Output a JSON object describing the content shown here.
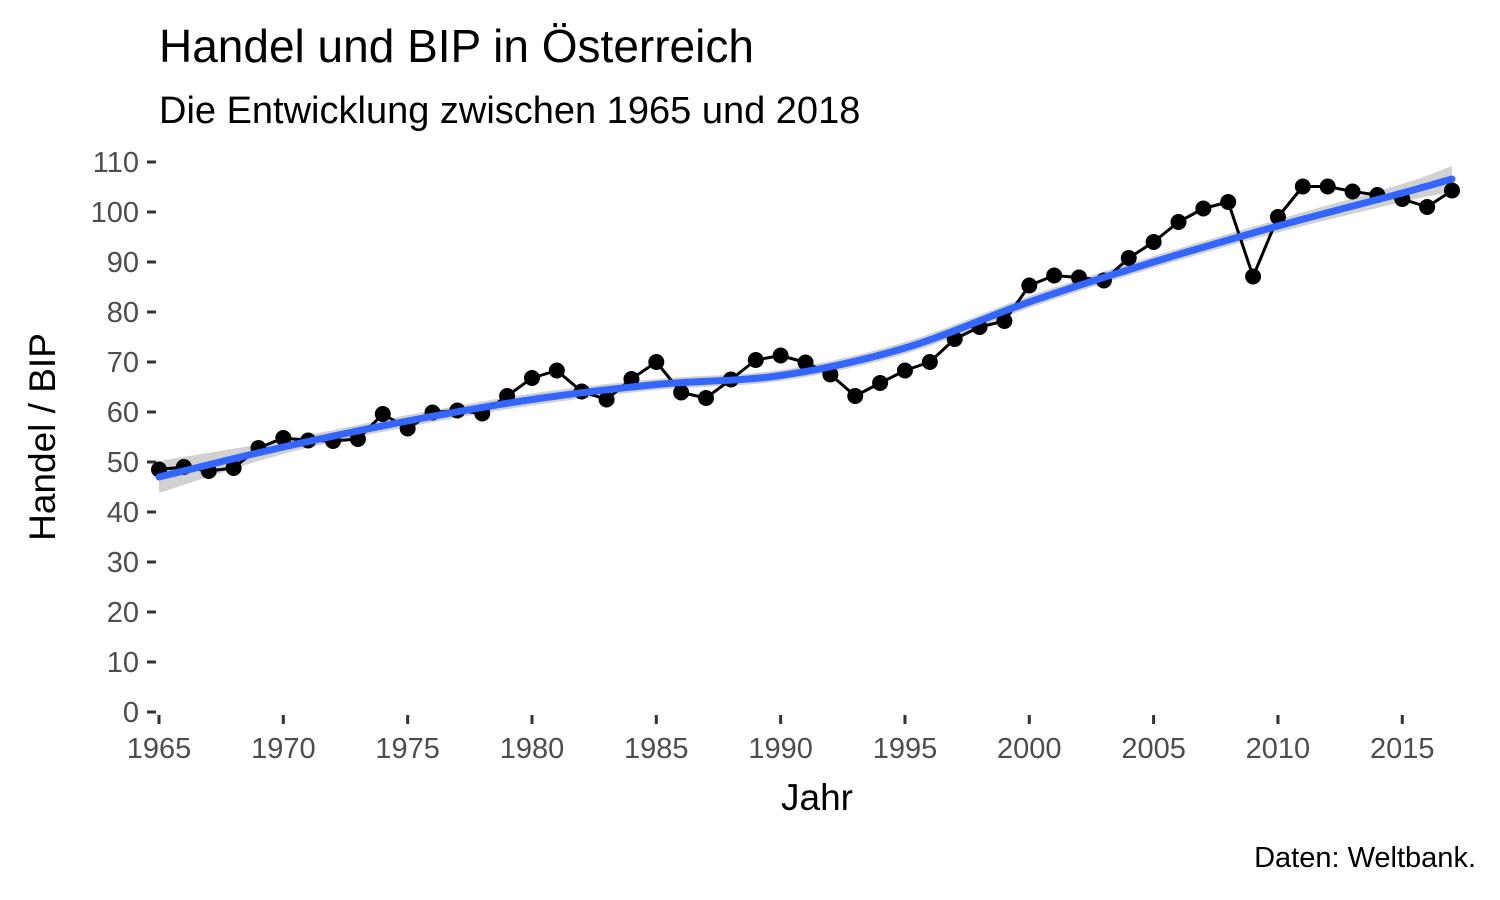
{
  "chart_data": {
    "type": "line",
    "title": "Handel und BIP in Österreich",
    "subtitle": "Die Entwicklung zwischen 1965 und 2018",
    "xlabel": "Jahr",
    "ylabel": "Handel / BIP",
    "caption": "Daten: Weltbank.",
    "xlim": [
      1965,
      2017
    ],
    "ylim": [
      0,
      110
    ],
    "x_ticks": [
      1965,
      1970,
      1975,
      1980,
      1985,
      1990,
      1995,
      2000,
      2005,
      2010,
      2015
    ],
    "y_ticks": [
      0,
      10,
      20,
      30,
      40,
      50,
      60,
      70,
      80,
      90,
      100,
      110
    ],
    "grid": false,
    "series": [
      {
        "kind": "line+points",
        "color": "#000000",
        "x": [
          1965,
          1966,
          1967,
          1968,
          1969,
          1970,
          1971,
          1972,
          1973,
          1974,
          1975,
          1976,
          1977,
          1978,
          1979,
          1980,
          1981,
          1982,
          1983,
          1984,
          1985,
          1986,
          1987,
          1988,
          1989,
          1990,
          1991,
          1992,
          1993,
          1994,
          1995,
          1996,
          1997,
          1998,
          1999,
          2000,
          2001,
          2002,
          2003,
          2004,
          2005,
          2006,
          2007,
          2008,
          2009,
          2010,
          2011,
          2012,
          2013,
          2014,
          2015,
          2016,
          2017
        ],
        "y": [
          48.5,
          49.0,
          48.2,
          48.8,
          52.8,
          54.8,
          54.3,
          54.2,
          54.6,
          59.6,
          56.7,
          59.9,
          60.3,
          59.7,
          63.2,
          66.8,
          68.3,
          64.1,
          62.5,
          66.6,
          70.0,
          63.9,
          62.8,
          66.5,
          70.4,
          71.3,
          69.9,
          67.5,
          63.2,
          65.8,
          68.3,
          70.0,
          74.6,
          77.0,
          78.2,
          85.3,
          87.3,
          86.9,
          86.3,
          90.8,
          94.0,
          98.0,
          100.7,
          102.0,
          87.1,
          99.0,
          105.1,
          105.1,
          104.1,
          103.4,
          102.6,
          101.0,
          104.3
        ]
      },
      {
        "kind": "smooth",
        "color": "#3366ff",
        "band_color": "#cccccc",
        "x": [
          1965,
          1970,
          1975,
          1980,
          1985,
          1990,
          1995,
          2000,
          2005,
          2010,
          2015,
          2017
        ],
        "y": [
          47.0,
          53.0,
          58.2,
          62.5,
          65.5,
          67.3,
          72.8,
          82.0,
          90.0,
          97.2,
          103.8,
          106.6
        ],
        "lower": [
          43.8,
          51.6,
          57.0,
          61.3,
          64.4,
          66.2,
          71.6,
          80.8,
          88.8,
          95.9,
          102.0,
          104.0
        ],
        "upper": [
          50.2,
          54.4,
          59.4,
          63.7,
          66.6,
          68.4,
          74.0,
          83.2,
          91.2,
          98.5,
          105.6,
          109.2
        ]
      }
    ]
  }
}
